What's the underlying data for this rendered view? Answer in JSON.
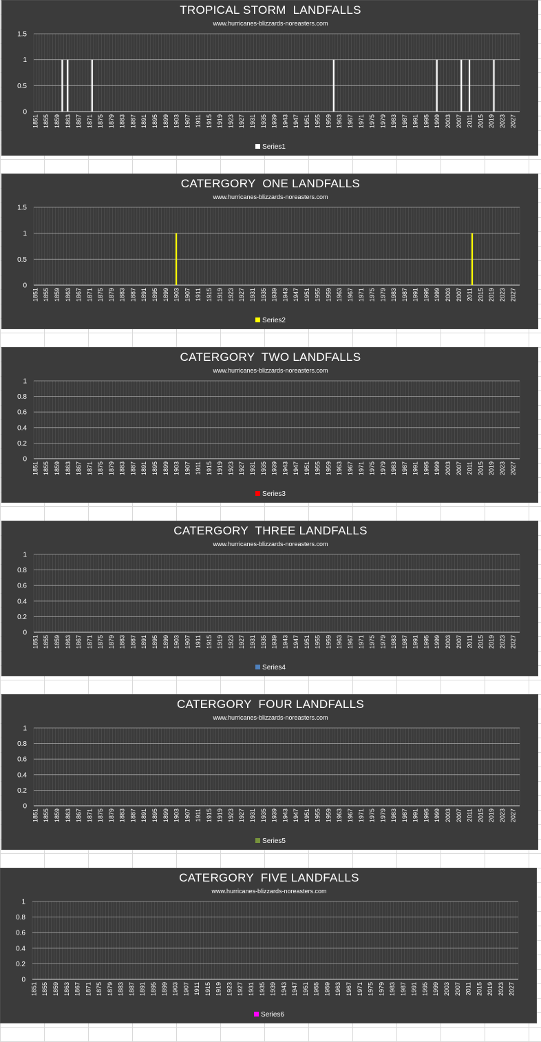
{
  "chart_data": [
    {
      "type": "bar",
      "title": "TROPICAL STORM  LANDFALLS",
      "subtitle": "www.hurricanes-blizzards-noreasters.com",
      "x_start": 1851,
      "x_end": 2029,
      "x_tick_labels": [
        "1851",
        "1855",
        "1859",
        "1863",
        "1867",
        "1871",
        "1875",
        "1879",
        "1883",
        "1887",
        "1891",
        "1895",
        "1899",
        "1903",
        "1907",
        "1911",
        "1915",
        "1919",
        "1923",
        "1927",
        "1931",
        "1935",
        "1939",
        "1943",
        "1947",
        "1951",
        "1955",
        "1959",
        "1963",
        "1967",
        "1971",
        "1975",
        "1979",
        "1983",
        "1987",
        "1991",
        "1995",
        "1999",
        "2003",
        "2007",
        "2011",
        "2015",
        "2019",
        "2023",
        "2027"
      ],
      "ylim": [
        0,
        1.5
      ],
      "y_ticks": [
        "0",
        "0.5",
        "1",
        "1.5"
      ],
      "series": [
        {
          "name": "Series1",
          "color": "#ffffff",
          "points": [
            {
              "x": 1861,
              "y": 1
            },
            {
              "x": 1863,
              "y": 1
            },
            {
              "x": 1872,
              "y": 1
            },
            {
              "x": 1961,
              "y": 1
            },
            {
              "x": 1999,
              "y": 1
            },
            {
              "x": 2008,
              "y": 1
            },
            {
              "x": 2011,
              "y": 1
            },
            {
              "x": 2020,
              "y": 1
            }
          ]
        }
      ],
      "grid": true,
      "legend": "bottom"
    },
    {
      "type": "bar",
      "title": "CATERGORY  ONE LANDFALLS",
      "subtitle": "www.hurricanes-blizzards-noreasters.com",
      "x_start": 1851,
      "x_end": 2029,
      "x_tick_labels": [
        "1851",
        "1855",
        "1859",
        "1863",
        "1867",
        "1871",
        "1875",
        "1879",
        "1883",
        "1887",
        "1891",
        "1895",
        "1899",
        "1903",
        "1907",
        "1911",
        "1915",
        "1919",
        "1923",
        "1927",
        "1931",
        "1935",
        "1939",
        "1943",
        "1947",
        "1951",
        "1955",
        "1959",
        "1963",
        "1967",
        "1971",
        "1975",
        "1979",
        "1983",
        "1987",
        "1991",
        "1995",
        "1999",
        "2003",
        "2007",
        "2011",
        "2015",
        "2019",
        "2023",
        "2027"
      ],
      "ylim": [
        0,
        1.5
      ],
      "y_ticks": [
        "0",
        "0.5",
        "1",
        "1.5"
      ],
      "series": [
        {
          "name": "Series2",
          "color": "#ffff00",
          "points": [
            {
              "x": 1903,
              "y": 1
            },
            {
              "x": 2012,
              "y": 1
            }
          ]
        }
      ],
      "grid": true,
      "legend": "bottom"
    },
    {
      "type": "bar",
      "title": "CATERGORY  TWO LANDFALLS",
      "subtitle": "www.hurricanes-blizzards-noreasters.com",
      "x_start": 1851,
      "x_end": 2029,
      "x_tick_labels": [
        "1851",
        "1855",
        "1859",
        "1863",
        "1867",
        "1871",
        "1875",
        "1879",
        "1883",
        "1887",
        "1891",
        "1895",
        "1899",
        "1903",
        "1907",
        "1911",
        "1915",
        "1919",
        "1923",
        "1927",
        "1931",
        "1935",
        "1939",
        "1943",
        "1947",
        "1951",
        "1955",
        "1959",
        "1963",
        "1967",
        "1971",
        "1975",
        "1979",
        "1983",
        "1987",
        "1991",
        "1995",
        "1999",
        "2003",
        "2007",
        "2011",
        "2015",
        "2019",
        "2023",
        "2027"
      ],
      "ylim": [
        0,
        1
      ],
      "y_ticks": [
        "0",
        "0.2",
        "0.4",
        "0.6",
        "0.8",
        "1"
      ],
      "series": [
        {
          "name": "Series3",
          "color": "#ff0000",
          "points": []
        }
      ],
      "grid": true,
      "legend": "bottom"
    },
    {
      "type": "bar",
      "title": "CATERGORY  THREE LANDFALLS",
      "subtitle": "www.hurricanes-blizzards-noreasters.com",
      "x_start": 1851,
      "x_end": 2029,
      "x_tick_labels": [
        "1851",
        "1855",
        "1859",
        "1863",
        "1867",
        "1871",
        "1875",
        "1879",
        "1883",
        "1887",
        "1891",
        "1895",
        "1899",
        "1903",
        "1907",
        "1911",
        "1915",
        "1919",
        "1923",
        "1927",
        "1931",
        "1935",
        "1939",
        "1943",
        "1947",
        "1951",
        "1955",
        "1959",
        "1963",
        "1967",
        "1971",
        "1975",
        "1979",
        "1983",
        "1987",
        "1991",
        "1995",
        "1999",
        "2003",
        "2007",
        "2011",
        "2015",
        "2019",
        "2023",
        "2027"
      ],
      "ylim": [
        0,
        1
      ],
      "y_ticks": [
        "0",
        "0.2",
        "0.4",
        "0.6",
        "0.8",
        "1"
      ],
      "series": [
        {
          "name": "Series4",
          "color": "#4f81bd",
          "points": []
        }
      ],
      "grid": true,
      "legend": "bottom"
    },
    {
      "type": "bar",
      "title": "CATERGORY  FOUR LANDFALLS",
      "subtitle": "www.hurricanes-blizzards-noreasters.com",
      "x_start": 1851,
      "x_end": 2029,
      "x_tick_labels": [
        "1851",
        "1855",
        "1859",
        "1863",
        "1867",
        "1871",
        "1875",
        "1879",
        "1883",
        "1887",
        "1891",
        "1895",
        "1899",
        "1903",
        "1907",
        "1911",
        "1915",
        "1919",
        "1923",
        "1927",
        "1931",
        "1935",
        "1939",
        "1943",
        "1947",
        "1951",
        "1955",
        "1959",
        "1963",
        "1967",
        "1971",
        "1975",
        "1979",
        "1983",
        "1987",
        "1991",
        "1995",
        "1999",
        "2003",
        "2007",
        "2011",
        "2015",
        "2019",
        "2023",
        "2027"
      ],
      "ylim": [
        0,
        1
      ],
      "y_ticks": [
        "0",
        "0.2",
        "0.4",
        "0.6",
        "0.8",
        "1"
      ],
      "series": [
        {
          "name": "Series5",
          "color": "#77933c",
          "points": []
        }
      ],
      "grid": true,
      "legend": "bottom"
    },
    {
      "type": "bar",
      "title": "CATERGORY  FIVE LANDFALLS",
      "subtitle": "www.hurricanes-blizzards-noreasters.com",
      "x_start": 1851,
      "x_end": 2029,
      "x_tick_labels": [
        "1851",
        "1855",
        "1859",
        "1863",
        "1867",
        "1871",
        "1875",
        "1879",
        "1883",
        "1887",
        "1891",
        "1895",
        "1899",
        "1903",
        "1907",
        "1911",
        "1915",
        "1919",
        "1923",
        "1927",
        "1931",
        "1935",
        "1939",
        "1943",
        "1947",
        "1951",
        "1955",
        "1959",
        "1963",
        "1967",
        "1971",
        "1975",
        "1979",
        "1983",
        "1987",
        "1991",
        "1995",
        "1999",
        "2003",
        "2007",
        "2011",
        "2015",
        "2019",
        "2023",
        "2027"
      ],
      "ylim": [
        0,
        1
      ],
      "y_ticks": [
        "0",
        "0.2",
        "0.4",
        "0.6",
        "0.8",
        "1"
      ],
      "series": [
        {
          "name": "Series6",
          "color": "#ff00ff",
          "points": []
        }
      ],
      "grid": true,
      "legend": "bottom"
    }
  ]
}
